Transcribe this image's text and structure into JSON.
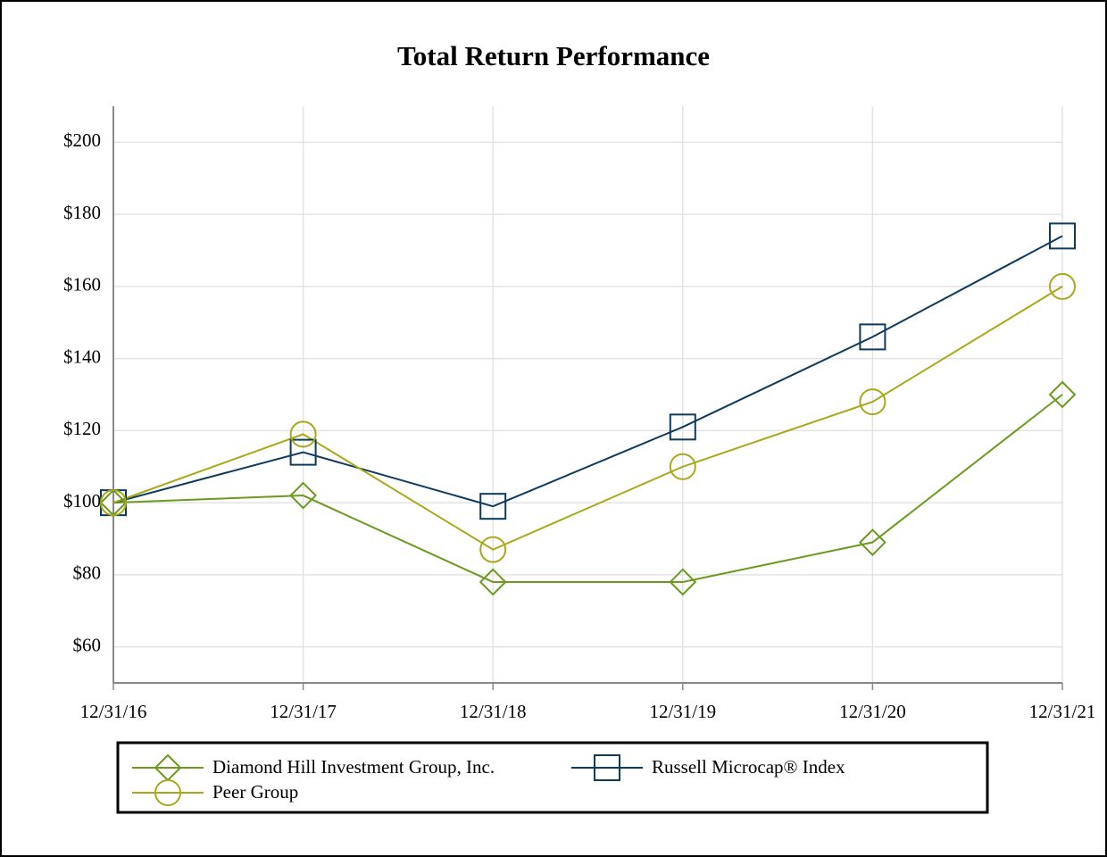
{
  "chart_data": {
    "type": "line",
    "title": "Total Return Performance",
    "categories": [
      "12/31/16",
      "12/31/17",
      "12/31/18",
      "12/31/19",
      "12/31/20",
      "12/31/21"
    ],
    "series": [
      {
        "name": "Diamond Hill Investment Group, Inc.",
        "color": "#6b9a1e",
        "marker": "diamond",
        "values": [
          100,
          102,
          78,
          78,
          89,
          130
        ]
      },
      {
        "name": "Russell Microcap® Index",
        "color": "#0e3a5c",
        "marker": "square",
        "values": [
          100,
          114,
          99,
          121,
          146,
          174
        ]
      },
      {
        "name": "Peer Group",
        "color": "#a8a81a",
        "marker": "circle",
        "values": [
          100,
          119,
          87,
          110,
          128,
          160
        ]
      }
    ],
    "ylim": [
      50,
      210
    ],
    "yticks": [
      {
        "value": 60,
        "label": "$60"
      },
      {
        "value": 80,
        "label": "$80"
      },
      {
        "value": 100,
        "label": "$100"
      },
      {
        "value": 120,
        "label": "$120"
      },
      {
        "value": 140,
        "label": "$140"
      },
      {
        "value": 160,
        "label": "$160"
      },
      {
        "value": 180,
        "label": "$180"
      },
      {
        "value": 200,
        "label": "$200"
      }
    ],
    "grid": true,
    "legend": "bottom"
  }
}
